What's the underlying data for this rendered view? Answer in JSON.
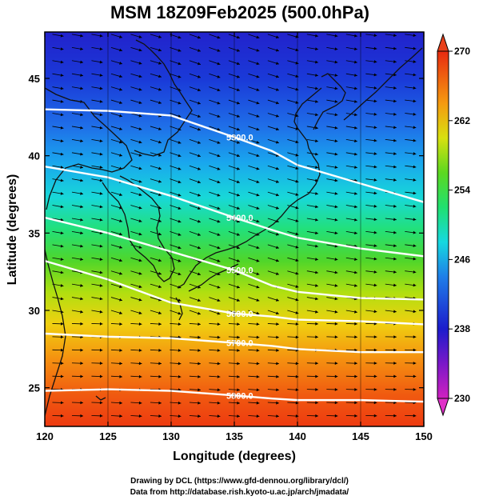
{
  "title": "MSM 18Z09Feb2025 (500.0hPa)",
  "chart": {
    "xlabel": "Longitude (degrees)",
    "ylabel": "Latitude  (degrees)",
    "xlim": [
      120,
      150
    ],
    "ylim": [
      22.5,
      48
    ],
    "xticks": [
      120,
      125,
      130,
      135,
      140,
      145,
      150
    ],
    "yticks": [
      25,
      30,
      35,
      40,
      45
    ],
    "colorbar": {
      "range": [
        230,
        270
      ],
      "ticks": [
        230,
        238,
        246,
        254,
        262,
        270
      ]
    },
    "contours": [
      {
        "label": "5300.0",
        "lat_at": [
          [
            120,
            43
          ],
          [
            125,
            42.9
          ],
          [
            130,
            42.6
          ],
          [
            135,
            41.2
          ],
          [
            138,
            40.3
          ],
          [
            140,
            39.4
          ],
          [
            145,
            38.2
          ],
          [
            150,
            37
          ]
        ]
      },
      {
        "label": "5400.0",
        "lat_at": [
          [
            120,
            39.3
          ],
          [
            125,
            38.6
          ],
          [
            130,
            37.4
          ],
          [
            135,
            36
          ],
          [
            138,
            35.2
          ],
          [
            140,
            34.7
          ],
          [
            145,
            34
          ],
          [
            150,
            33.5
          ]
        ]
      },
      {
        "label": "5500.0",
        "lat_at": [
          [
            120,
            36
          ],
          [
            125,
            35
          ],
          [
            130,
            33.8
          ],
          [
            135,
            32.6
          ],
          [
            138,
            31.6
          ],
          [
            140,
            31.2
          ],
          [
            145,
            30.8
          ],
          [
            150,
            30.7
          ]
        ]
      },
      {
        "label": "5600.0",
        "lat_at": [
          [
            120,
            33.2
          ],
          [
            125,
            32
          ],
          [
            130,
            30.5
          ],
          [
            135,
            29.8
          ],
          [
            138,
            29.6
          ],
          [
            140,
            29.4
          ],
          [
            145,
            29.3
          ],
          [
            150,
            29.1
          ]
        ]
      },
      {
        "label": "5700.0",
        "lat_at": [
          [
            120,
            28.5
          ],
          [
            125,
            28.3
          ],
          [
            130,
            28.2
          ],
          [
            135,
            27.9
          ],
          [
            138,
            27.7
          ],
          [
            140,
            27.5
          ],
          [
            145,
            27.3
          ],
          [
            150,
            27.3
          ]
        ]
      },
      {
        "label": "5800.0",
        "lat_at": [
          [
            120,
            24.8
          ],
          [
            125,
            24.9
          ],
          [
            130,
            24.8
          ],
          [
            135,
            24.5
          ],
          [
            138,
            24.3
          ],
          [
            140,
            24.2
          ],
          [
            145,
            24.2
          ],
          [
            150,
            24.1
          ]
        ]
      }
    ]
  },
  "credits": {
    "line1": "Drawing by DCL (https://www.gfd-dennou.org/library/dcl/)",
    "line2": "Data from http://database.rish.kyoto-u.ac.jp/arch/jmadata/"
  }
}
